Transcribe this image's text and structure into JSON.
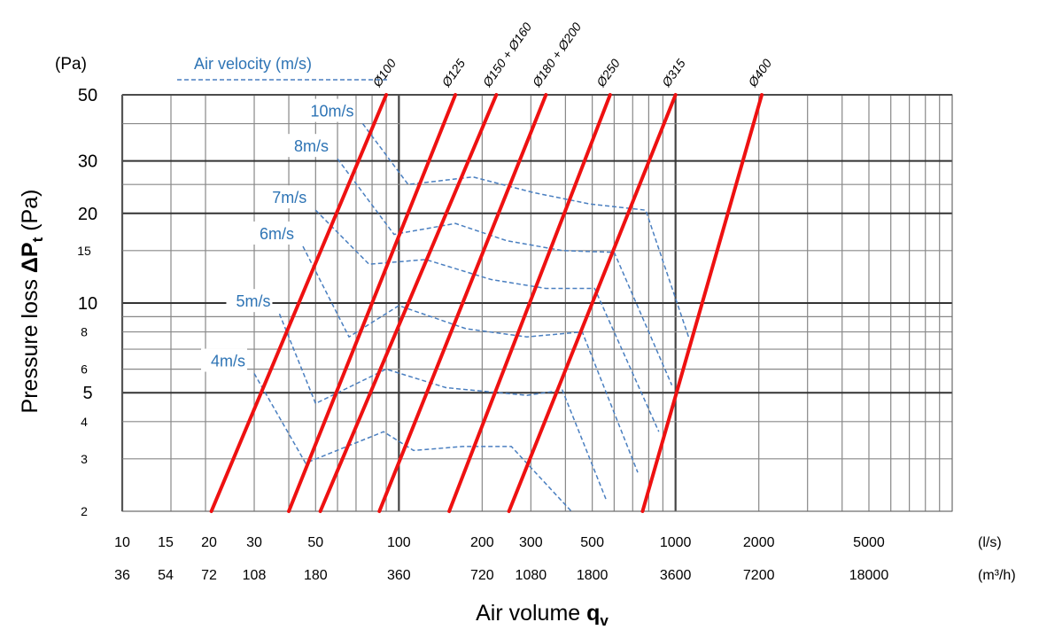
{
  "chart_data": {
    "type": "line",
    "x_scale": "log",
    "y_scale": "log",
    "xlim": [
      10,
      10000
    ],
    "ylim": [
      2,
      50
    ],
    "grid": true,
    "ylabel": {
      "main": "Pressure loss",
      "symbol": "ΔP",
      "sub": "t",
      "unit": "(Pa)"
    },
    "xlabel": {
      "main": "Air volume",
      "symbol": "q",
      "sub": "v"
    },
    "y_unit_label": "(Pa)",
    "x_unit_labels": {
      "ls": "(l/s)",
      "m3h": "(m³/h)"
    },
    "y_ticks": [
      {
        "v": 50,
        "label": "50",
        "size": "large"
      },
      {
        "v": 30,
        "label": "30",
        "size": "large"
      },
      {
        "v": 20,
        "label": "20",
        "size": "large"
      },
      {
        "v": 15,
        "label": "15",
        "size": "small"
      },
      {
        "v": 10,
        "label": "10",
        "size": "large"
      },
      {
        "v": 8,
        "label": "8",
        "size": "small"
      },
      {
        "v": 6,
        "label": "6",
        "size": "small"
      },
      {
        "v": 5,
        "label": "5",
        "size": "large"
      },
      {
        "v": 4,
        "label": "4",
        "size": "small"
      },
      {
        "v": 3,
        "label": "3",
        "size": "small"
      },
      {
        "v": 2,
        "label": "2",
        "size": "small"
      }
    ],
    "x_ticks": [
      {
        "v": 10,
        "ls": "10",
        "m3h": "36"
      },
      {
        "v": 15,
        "ls": "15",
        "m3h": "54"
      },
      {
        "v": 20,
        "ls": "20",
        "m3h": "72"
      },
      {
        "v": 30,
        "ls": "30",
        "m3h": "108"
      },
      {
        "v": 50,
        "ls": "50",
        "m3h": "180"
      },
      {
        "v": 100,
        "ls": "100",
        "m3h": "360"
      },
      {
        "v": 200,
        "ls": "200",
        "m3h": "720"
      },
      {
        "v": 300,
        "ls": "300",
        "m3h": "1080"
      },
      {
        "v": 500,
        "ls": "500",
        "m3h": "1800"
      },
      {
        "v": 1000,
        "ls": "1000",
        "m3h": "3600"
      },
      {
        "v": 2000,
        "ls": "2000",
        "m3h": "7200"
      },
      {
        "v": 5000,
        "ls": "5000",
        "m3h": "18000"
      }
    ],
    "legend": {
      "label": "Air velocity  (m/s)",
      "position": "top-left"
    },
    "series": [
      {
        "name": "Ø100",
        "color": "#ee1111",
        "points": [
          [
            21,
            2
          ],
          [
            90,
            50
          ]
        ]
      },
      {
        "name": "Ø125",
        "color": "#ee1111",
        "points": [
          [
            40,
            2
          ],
          [
            160,
            50
          ]
        ]
      },
      {
        "name": "Ø150 + Ø160",
        "color": "#ee1111",
        "points": [
          [
            52,
            2
          ],
          [
            225,
            50
          ]
        ]
      },
      {
        "name": "Ø180 + Ø200",
        "color": "#ee1111",
        "points": [
          [
            85,
            2
          ],
          [
            340,
            50
          ]
        ]
      },
      {
        "name": "Ø250",
        "color": "#ee1111",
        "points": [
          [
            152,
            2
          ],
          [
            580,
            50
          ]
        ]
      },
      {
        "name": "Ø315",
        "color": "#ee1111",
        "points": [
          [
            250,
            2
          ],
          [
            1000,
            50
          ]
        ]
      },
      {
        "name": "Ø400",
        "color": "#ee1111",
        "points": [
          [
            760,
            2
          ],
          [
            2050,
            50
          ]
        ]
      }
    ],
    "velocity_lines": [
      {
        "label": "4m/s",
        "color": "#4a7fc0",
        "points": [
          [
            30,
            5.8
          ],
          [
            46,
            2.9
          ],
          [
            88,
            3.7
          ],
          [
            113,
            3.2
          ],
          [
            170,
            3.3
          ],
          [
            255,
            3.3
          ],
          [
            420,
            2.0
          ]
        ]
      },
      {
        "label": "5m/s",
        "color": "#4a7fc0",
        "points": [
          [
            37,
            9.2
          ],
          [
            50,
            4.6
          ],
          [
            90,
            6.0
          ],
          [
            148,
            5.2
          ],
          [
            290,
            4.9
          ],
          [
            390,
            5.1
          ],
          [
            560,
            2.2
          ]
        ]
      },
      {
        "label": "6m/s",
        "color": "#4a7fc0",
        "points": [
          [
            45,
            15.5
          ],
          [
            66,
            7.7
          ],
          [
            100,
            9.8
          ],
          [
            175,
            8.2
          ],
          [
            290,
            7.7
          ],
          [
            460,
            8.0
          ],
          [
            730,
            2.7
          ]
        ]
      },
      {
        "label": "7m/s",
        "color": "#4a7fc0",
        "points": [
          [
            50,
            20.5
          ],
          [
            78,
            13.5
          ],
          [
            125,
            14.0
          ],
          [
            215,
            12.0
          ],
          [
            340,
            11.2
          ],
          [
            510,
            11.2
          ],
          [
            870,
            3.7
          ]
        ]
      },
      {
        "label": "8m/s",
        "color": "#4a7fc0",
        "points": [
          [
            60,
            30.5
          ],
          [
            96,
            17.0
          ],
          [
            160,
            18.5
          ],
          [
            245,
            16.2
          ],
          [
            390,
            15.0
          ],
          [
            600,
            14.8
          ],
          [
            970,
            5.3
          ]
        ]
      },
      {
        "label": "10m/s",
        "color": "#4a7fc0",
        "points": [
          [
            74,
            40.0
          ],
          [
            108,
            25.0
          ],
          [
            185,
            26.5
          ],
          [
            305,
            23.5
          ],
          [
            490,
            21.5
          ],
          [
            780,
            20.5
          ],
          [
            1120,
            7.6
          ]
        ]
      }
    ]
  }
}
